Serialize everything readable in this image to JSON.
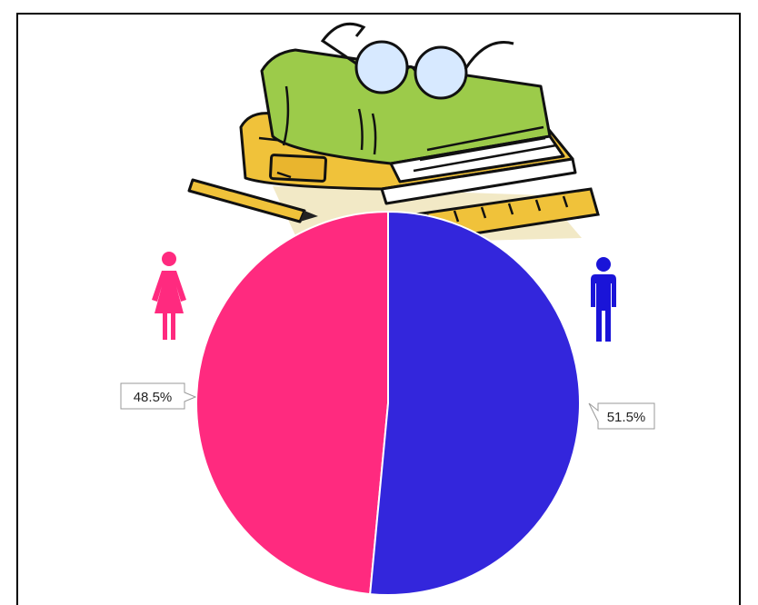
{
  "chart_data": {
    "type": "pie",
    "title": "",
    "slices": [
      {
        "label": "48.5%",
        "value": 48.5,
        "color": "#ff2a7f",
        "icon": "female-icon"
      },
      {
        "label": "51.5%",
        "value": 51.5,
        "color": "#3326dc",
        "icon": "male-icon"
      }
    ],
    "legend": "icons",
    "decoration": "books-glasses-pencil-ruler-illustration"
  }
}
